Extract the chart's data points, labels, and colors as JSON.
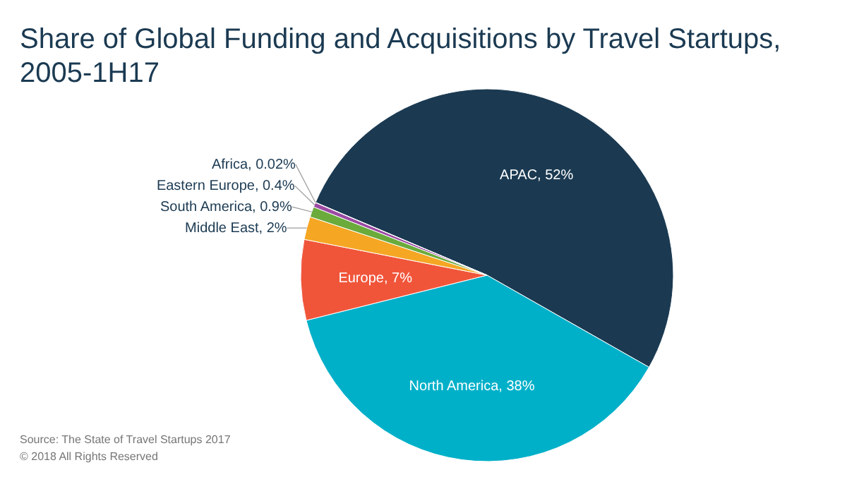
{
  "chart_data": {
    "type": "pie",
    "title": "Share of Global Funding and Acquisitions by Travel Startups, 2005-1H17",
    "categories": [
      "APAC",
      "North America",
      "Europe",
      "Middle East",
      "South America",
      "Eastern Europe",
      "Africa"
    ],
    "values": [
      52,
      38,
      7,
      2,
      0.9,
      0.4,
      0.02
    ],
    "value_labels": [
      "52%",
      "38%",
      "7%",
      "2%",
      "0.9%",
      "0.4%",
      "0.02%"
    ],
    "colors": [
      "#1b3a52",
      "#00b0c9",
      "#f0553a",
      "#f5a623",
      "#6aab3c",
      "#9b4aa3",
      "#e05a8a"
    ],
    "annotations": [
      "Source: The State of Travel Startups 2017",
      "© 2018 All Rights Reserved"
    ]
  }
}
